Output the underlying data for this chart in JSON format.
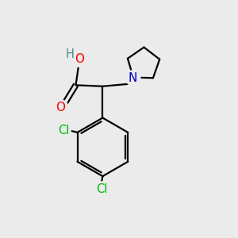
{
  "background_color": "#ebebeb",
  "bond_color": "#000000",
  "atom_colors": {
    "O": "#ff0000",
    "N": "#0000cd",
    "Cl": "#00bb00",
    "H": "#4a8a8a",
    "C": "#000000"
  },
  "figsize": [
    3.0,
    3.0
  ],
  "dpi": 100
}
